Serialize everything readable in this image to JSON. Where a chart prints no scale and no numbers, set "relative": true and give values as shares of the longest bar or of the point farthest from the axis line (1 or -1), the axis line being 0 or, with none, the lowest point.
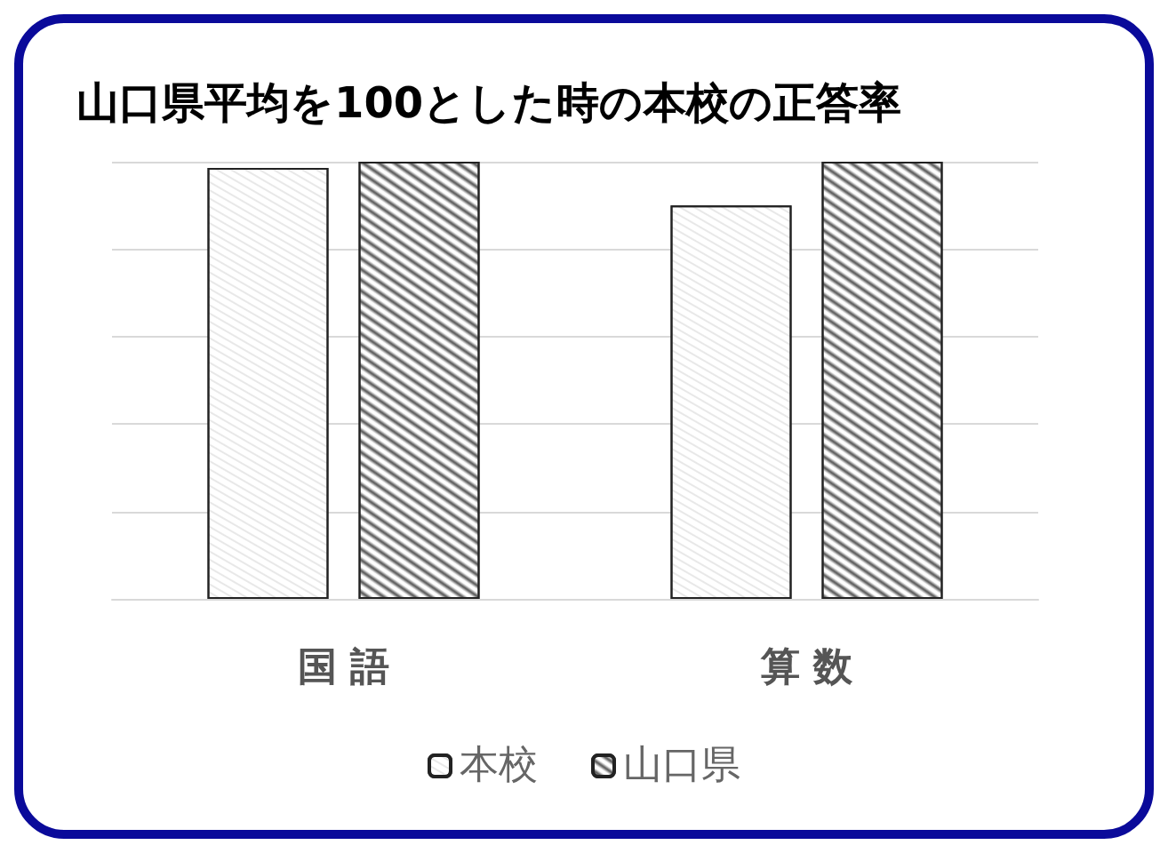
{
  "chart_data": {
    "type": "bar",
    "title": "山口県平均を100とした時の本校の正答率",
    "categories": [
      "国 語",
      "算 数"
    ],
    "relative": true,
    "grid": "y",
    "legend": "bottom",
    "series": [
      {
        "name": "本校",
        "color": "#ffffff",
        "values": [
          0.986,
          0.9
        ]
      },
      {
        "name": "山口県",
        "color": "#ffffff",
        "values": [
          1,
          1
        ]
      }
    ]
  }
}
